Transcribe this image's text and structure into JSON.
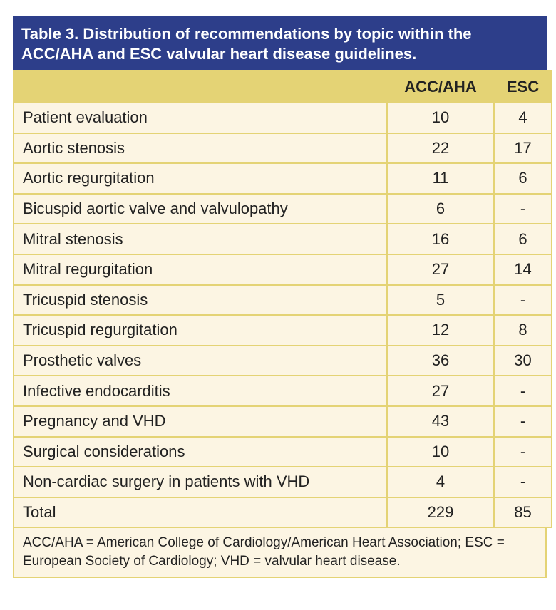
{
  "title": "Table 3. Distribution of recommendations by topic within the ACC/AHA and ESC valvular heart disease guidelines.",
  "columns": [
    "",
    "ACC/AHA",
    "ESC"
  ],
  "rows": [
    {
      "topic": "Patient evaluation",
      "acc_aha": "10",
      "esc": "4"
    },
    {
      "topic": "Aortic stenosis",
      "acc_aha": "22",
      "esc": "17"
    },
    {
      "topic": "Aortic regurgitation",
      "acc_aha": "11",
      "esc": "6"
    },
    {
      "topic": "Bicuspid aortic valve and valvulopathy",
      "acc_aha": "6",
      "esc": "-"
    },
    {
      "topic": "Mitral stenosis",
      "acc_aha": "16",
      "esc": "6"
    },
    {
      "topic": "Mitral regurgitation",
      "acc_aha": "27",
      "esc": "14"
    },
    {
      "topic": "Tricuspid stenosis",
      "acc_aha": "5",
      "esc": "-"
    },
    {
      "topic": "Tricuspid regurgitation",
      "acc_aha": "12",
      "esc": "8"
    },
    {
      "topic": "Prosthetic valves",
      "acc_aha": "36",
      "esc": "30"
    },
    {
      "topic": "Infective endocarditis",
      "acc_aha": "27",
      "esc": "-"
    },
    {
      "topic": "Pregnancy and VHD",
      "acc_aha": "43",
      "esc": "-"
    },
    {
      "topic": "Surgical considerations",
      "acc_aha": "10",
      "esc": "-"
    },
    {
      "topic": "Non-cardiac surgery in patients with VHD",
      "acc_aha": "4",
      "esc": "-"
    },
    {
      "topic": "Total",
      "acc_aha": "229",
      "esc": "85"
    }
  ],
  "footnote": "ACC/AHA = American College of Cardiology/American Heart Association; ESC = European Society of Cardiology; VHD = valvular heart disease.",
  "colors": {
    "title_bg": "#2d3e8a",
    "header_bg": "#e4d375",
    "cell_bg": "#fcf5e3"
  }
}
